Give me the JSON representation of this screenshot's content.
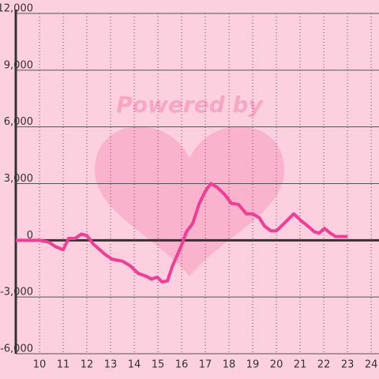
{
  "chart_data": {
    "type": "line",
    "watermark": "Powered by",
    "x": [
      9,
      10,
      10.4,
      10.67,
      11,
      11.23,
      11.5,
      11.77,
      12,
      12.27,
      12.5,
      12.77,
      13.07,
      13.5,
      13.83,
      14.17,
      14.5,
      14.73,
      14.97,
      15.17,
      15.4,
      15.6,
      16,
      16.2,
      16.47,
      16.73,
      17,
      17.23,
      17.5,
      17.83,
      18.1,
      18.4,
      18.73,
      19,
      19.27,
      19.5,
      19.77,
      20,
      20.33,
      20.73,
      21.03,
      21.33,
      21.6,
      21.8,
      22.03,
      22.27,
      22.5,
      23
    ],
    "series": [
      {
        "color": "#f23d96",
        "values": [
          0,
          0,
          -100,
          -330,
          -500,
          100,
          100,
          330,
          250,
          -200,
          -450,
          -750,
          -1000,
          -1100,
          -1350,
          -1750,
          -1900,
          -2050,
          -1950,
          -2200,
          -2150,
          -1400,
          -250,
          450,
          900,
          1900,
          2600,
          3000,
          2800,
          2400,
          1950,
          1900,
          1400,
          1400,
          1200,
          750,
          500,
          500,
          900,
          1400,
          1050,
          750,
          450,
          380,
          630,
          380,
          200,
          200
        ]
      }
    ],
    "xlim": [
      9,
      24.33
    ],
    "xticks": [
      10,
      11,
      12,
      13,
      14,
      15,
      16,
      17,
      18,
      19,
      20,
      21,
      22,
      23,
      24
    ],
    "ylim": [
      -6000,
      12000
    ],
    "yticks": [
      {
        "value": -6000,
        "label": "-6,000"
      },
      {
        "value": -3000,
        "label": "-3,000"
      },
      0,
      {
        "value": 3000,
        "label": "3,000"
      },
      {
        "value": 6000,
        "label": "6,000"
      },
      {
        "value": 9000,
        "label": "9,000"
      },
      {
        "value": 12000,
        "label": "12,000"
      }
    ],
    "grid": true
  }
}
